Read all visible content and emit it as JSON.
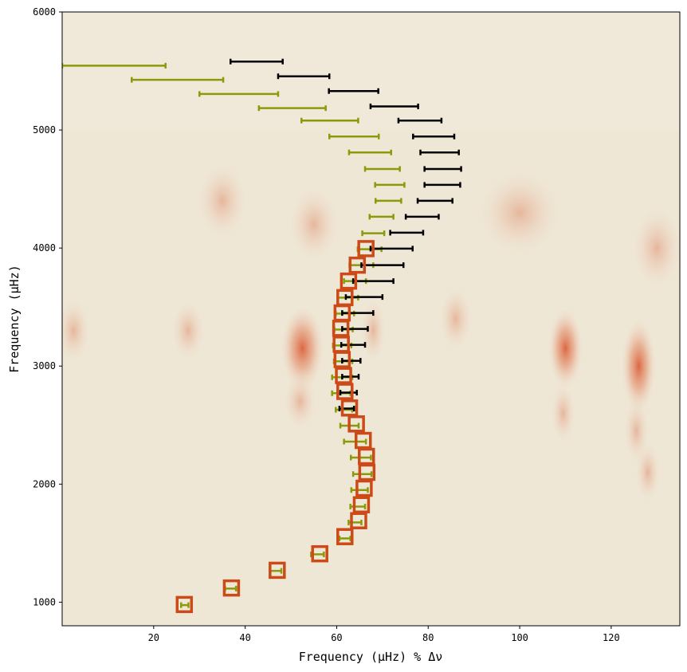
{
  "chart_data": {
    "type": "scatter",
    "xlabel": "Frequency (μHz) % Δν",
    "ylabel": "Frequency (μHz)",
    "xlim": [
      0,
      135
    ],
    "ylim": [
      800,
      6000
    ],
    "xticks": [
      20,
      40,
      60,
      80,
      100,
      120
    ],
    "yticks": [
      1000,
      2000,
      3000,
      4000,
      5000,
      6000
    ],
    "colors": {
      "background": "#efe7d6",
      "ridge": "#d9502a",
      "olive": "#8a9a08",
      "black": "#000000",
      "marker": "#cc4a18"
    },
    "series": [
      {
        "style": "olive-errorbar",
        "points": [
          {
            "x": 26.8,
            "y": 975,
            "xerr": 0.8
          },
          {
            "x": 36.8,
            "y": 1115,
            "xerr": 1.2
          },
          {
            "x": 46.7,
            "y": 1265,
            "xerr": 1.2
          },
          {
            "x": 55.8,
            "y": 1405,
            "xerr": 1.4
          },
          {
            "x": 61.8,
            "y": 1540,
            "xerr": 1.2
          },
          {
            "x": 64.0,
            "y": 1675,
            "xerr": 1.4
          },
          {
            "x": 64.6,
            "y": 1810,
            "xerr": 1.6
          },
          {
            "x": 65.0,
            "y": 1950,
            "xerr": 1.8
          },
          {
            "x": 65.6,
            "y": 2085,
            "xerr": 2.0
          },
          {
            "x": 65.3,
            "y": 2225,
            "xerr": 2.2
          },
          {
            "x": 64.0,
            "y": 2360,
            "xerr": 2.4
          },
          {
            "x": 62.8,
            "y": 2495,
            "xerr": 2.0
          },
          {
            "x": 61.6,
            "y": 2630,
            "xerr": 1.8
          },
          {
            "x": 61.0,
            "y": 2770,
            "xerr": 2.0
          },
          {
            "x": 61.2,
            "y": 2905,
            "xerr": 2.2
          },
          {
            "x": 61.4,
            "y": 3040,
            "xerr": 2.0
          },
          {
            "x": 61.2,
            "y": 3175,
            "xerr": 2.0
          },
          {
            "x": 61.5,
            "y": 3310,
            "xerr": 2.0
          },
          {
            "x": 61.8,
            "y": 3445,
            "xerr": 2.0
          },
          {
            "x": 62.5,
            "y": 3580,
            "xerr": 2.2
          },
          {
            "x": 64.0,
            "y": 3720,
            "xerr": 2.4
          },
          {
            "x": 65.4,
            "y": 3855,
            "xerr": 2.6
          },
          {
            "x": 67.2,
            "y": 3990,
            "xerr": 2.6
          },
          {
            "x": 68.0,
            "y": 4125,
            "xerr": 2.4
          },
          {
            "x": 69.8,
            "y": 4265,
            "xerr": 2.6
          },
          {
            "x": 71.3,
            "y": 4400,
            "xerr": 2.8
          },
          {
            "x": 71.6,
            "y": 4535,
            "xerr": 3.2
          },
          {
            "x": 70.0,
            "y": 4670,
            "xerr": 3.8
          },
          {
            "x": 67.3,
            "y": 4810,
            "xerr": 4.6
          },
          {
            "x": 63.8,
            "y": 4945,
            "xerr": 5.4
          },
          {
            "x": 58.5,
            "y": 5080,
            "xerr": 6.2
          },
          {
            "x": 50.3,
            "y": 5185,
            "xerr": 7.3
          },
          {
            "x": 38.6,
            "y": 5305,
            "xerr": 8.6
          },
          {
            "x": 25.2,
            "y": 5425,
            "xerr": 10.0
          },
          {
            "x": 11.3,
            "y": 5545,
            "xerr": 11.3
          }
        ]
      },
      {
        "style": "black-errorbar",
        "points": [
          {
            "x": 62.2,
            "y": 2640,
            "xerr": 1.6
          },
          {
            "x": 62.6,
            "y": 2775,
            "xerr": 1.8
          },
          {
            "x": 63.0,
            "y": 2910,
            "xerr": 1.8
          },
          {
            "x": 63.2,
            "y": 3045,
            "xerr": 2.0
          },
          {
            "x": 63.6,
            "y": 3180,
            "xerr": 2.6
          },
          {
            "x": 64.0,
            "y": 3315,
            "xerr": 2.8
          },
          {
            "x": 64.6,
            "y": 3450,
            "xerr": 3.4
          },
          {
            "x": 66.0,
            "y": 3585,
            "xerr": 4.0
          },
          {
            "x": 68.0,
            "y": 3720,
            "xerr": 4.4
          },
          {
            "x": 70.0,
            "y": 3855,
            "xerr": 4.6
          },
          {
            "x": 72.0,
            "y": 3995,
            "xerr": 4.6
          },
          {
            "x": 75.3,
            "y": 4130,
            "xerr": 3.6
          },
          {
            "x": 78.7,
            "y": 4265,
            "xerr": 3.6
          },
          {
            "x": 81.5,
            "y": 4400,
            "xerr": 3.8
          },
          {
            "x": 83.1,
            "y": 4535,
            "xerr": 3.9
          },
          {
            "x": 83.2,
            "y": 4670,
            "xerr": 4.0
          },
          {
            "x": 82.5,
            "y": 4810,
            "xerr": 4.2
          },
          {
            "x": 81.2,
            "y": 4945,
            "xerr": 4.5
          },
          {
            "x": 78.2,
            "y": 5080,
            "xerr": 4.7
          },
          {
            "x": 72.6,
            "y": 5200,
            "xerr": 5.2
          },
          {
            "x": 63.7,
            "y": 5330,
            "xerr": 5.4
          },
          {
            "x": 52.8,
            "y": 5455,
            "xerr": 5.6
          },
          {
            "x": 42.5,
            "y": 5580,
            "xerr": 5.7
          }
        ]
      },
      {
        "style": "orange-square",
        "points": [
          {
            "x": 26.7,
            "y": 980
          },
          {
            "x": 37.0,
            "y": 1120
          },
          {
            "x": 47.0,
            "y": 1270
          },
          {
            "x": 56.3,
            "y": 1410
          },
          {
            "x": 61.8,
            "y": 1555
          },
          {
            "x": 64.8,
            "y": 1690
          },
          {
            "x": 65.4,
            "y": 1825
          },
          {
            "x": 66.0,
            "y": 1965
          },
          {
            "x": 66.6,
            "y": 2100
          },
          {
            "x": 66.5,
            "y": 2235
          },
          {
            "x": 65.8,
            "y": 2370
          },
          {
            "x": 64.3,
            "y": 2510
          },
          {
            "x": 62.8,
            "y": 2645
          },
          {
            "x": 61.8,
            "y": 2785
          },
          {
            "x": 61.5,
            "y": 2920
          },
          {
            "x": 61.2,
            "y": 3055
          },
          {
            "x": 61.0,
            "y": 3185
          },
          {
            "x": 60.9,
            "y": 3320
          },
          {
            "x": 61.2,
            "y": 3450
          },
          {
            "x": 61.8,
            "y": 3580
          },
          {
            "x": 62.6,
            "y": 3720
          },
          {
            "x": 64.5,
            "y": 3855
          },
          {
            "x": 66.4,
            "y": 3995
          }
        ]
      }
    ]
  }
}
